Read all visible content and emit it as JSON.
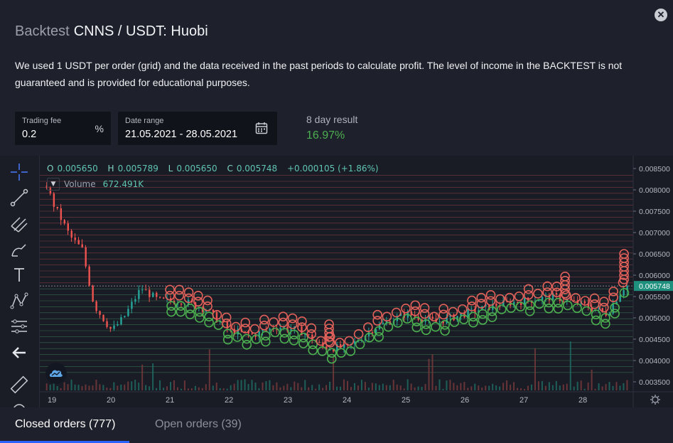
{
  "modal": {
    "title_prefix": "Backtest",
    "title_pair": "CNNS / USDT: Huobi",
    "description": "We used 1 USDT per order (grid) and the data received in the past periods to calculate profit. The level of income in the BACKTEST is not guaranteed and is provided for educational purposes.",
    "close_icon": "close-icon"
  },
  "controls": {
    "trading_fee_label": "Trading fee",
    "trading_fee_value": "0.2",
    "trading_fee_unit": "%",
    "date_range_label": "Date range",
    "date_range_value": "21.05.2021 - 28.05.2021",
    "calendar_icon": "calendar-icon",
    "result_label": "8 day result",
    "result_value": "16.97%",
    "result_color": "#4caf50"
  },
  "toolbar": {
    "tools": [
      "crosshair-icon",
      "trend-line-icon",
      "pitchfork-icon",
      "brush-icon",
      "text-icon",
      "pattern-icon",
      "prediction-icon",
      "back-arrow-icon",
      "ruler-icon",
      "magnet-icon"
    ]
  },
  "chart": {
    "ohlc": {
      "o_label": "O",
      "o_value": "0.005650",
      "h_label": "H",
      "h_value": "0.005789",
      "l_label": "L",
      "l_value": "0.005650",
      "c_label": "C",
      "c_value": "0.005748",
      "change": "+0.000105 (+1.86%)"
    },
    "volume_label": "Volume",
    "volume_value": "672.491K",
    "price_ticks": [
      "0.008500",
      "0.008000",
      "0.007500",
      "0.007000",
      "0.006500",
      "0.006000",
      "0.005500",
      "0.005000",
      "0.004500",
      "0.004000",
      "0.003500"
    ],
    "current_price": "0.005748",
    "date_ticks": [
      "19",
      "20",
      "21",
      "22",
      "23",
      "24",
      "25",
      "26",
      "27",
      "28"
    ],
    "settings_icon": "gear-icon",
    "logo_icon": "tradingview-logo-icon"
  },
  "chart_data": {
    "type": "candlestick",
    "ylim": [
      0.0033,
      0.0087
    ],
    "x_ticks": [
      "19",
      "20",
      "21",
      "22",
      "23",
      "24",
      "25",
      "26",
      "27",
      "28"
    ],
    "approx_close": [
      {
        "x": "18.9",
        "y": 0.0081
      },
      {
        "x": "19.0",
        "y": 0.0077
      },
      {
        "x": "19.3",
        "y": 0.0069
      },
      {
        "x": "19.5",
        "y": 0.0066
      },
      {
        "x": "19.7",
        "y": 0.0053
      },
      {
        "x": "20.0",
        "y": 0.0047
      },
      {
        "x": "20.2",
        "y": 0.005
      },
      {
        "x": "20.5",
        "y": 0.0057
      },
      {
        "x": "20.8",
        "y": 0.0054
      },
      {
        "x": "21.2",
        "y": 0.0054
      },
      {
        "x": "21.6",
        "y": 0.0052
      },
      {
        "x": "22.0",
        "y": 0.0047
      },
      {
        "x": "22.4",
        "y": 0.0046
      },
      {
        "x": "22.8",
        "y": 0.0048
      },
      {
        "x": "23.2",
        "y": 0.0047
      },
      {
        "x": "23.6",
        "y": 0.0043
      },
      {
        "x": "24.0",
        "y": 0.0043
      },
      {
        "x": "24.5",
        "y": 0.0048
      },
      {
        "x": "25.0",
        "y": 0.0051
      },
      {
        "x": "25.5",
        "y": 0.0049
      },
      {
        "x": "26.0",
        "y": 0.0051
      },
      {
        "x": "26.5",
        "y": 0.0053
      },
      {
        "x": "27.0",
        "y": 0.0054
      },
      {
        "x": "27.5",
        "y": 0.0055
      },
      {
        "x": "28.0",
        "y": 0.0053
      },
      {
        "x": "28.4",
        "y": 0.0051
      },
      {
        "x": "28.7",
        "y": 0.00575
      }
    ],
    "up_color": "#26a69a",
    "down_color": "#ef5350",
    "buy_order_color": "#4caf50",
    "sell_order_color": "#e0605a"
  },
  "tabs": {
    "closed": "Closed orders (777)",
    "open": "Open orders (39)"
  }
}
